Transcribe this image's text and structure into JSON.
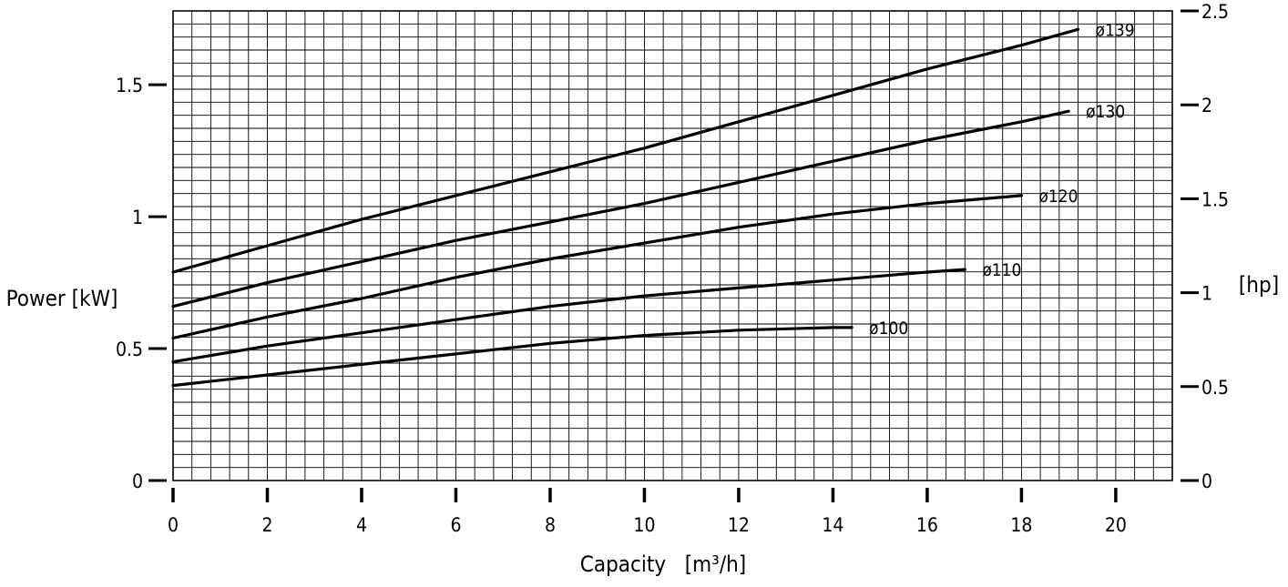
{
  "chart_data": {
    "type": "line",
    "xlabel": "Capacity   [m³/h]",
    "ylabel": "Power [kW]",
    "y2label": "[hp]",
    "xlim": [
      0,
      21.2
    ],
    "ylim": [
      0,
      1.78
    ],
    "y2lim": [
      0,
      2.5
    ],
    "x_ticks": [
      0,
      2,
      4,
      6,
      8,
      10,
      12,
      14,
      16,
      18,
      20
    ],
    "x_tick_labels": [
      "0",
      "2",
      "4",
      "6",
      "8",
      "10",
      "12",
      "14",
      "16",
      "18",
      "20"
    ],
    "y_ticks": [
      0,
      0.5,
      1,
      1.5
    ],
    "y_tick_labels": [
      "0",
      "0.5",
      "1",
      "1.5"
    ],
    "y2_ticks": [
      0,
      0.5,
      1,
      1.5,
      2,
      2.5
    ],
    "y2_tick_labels": [
      "0",
      "0.5",
      "1",
      "1.5",
      "2",
      "2.5"
    ],
    "grid": true,
    "series": [
      {
        "name": "ø139",
        "x": [
          0,
          2,
          4,
          6,
          8,
          10,
          12,
          14,
          16,
          18,
          19.2
        ],
        "y": [
          0.79,
          0.89,
          0.99,
          1.08,
          1.17,
          1.26,
          1.36,
          1.46,
          1.56,
          1.65,
          1.71
        ]
      },
      {
        "name": "ø130",
        "x": [
          0,
          2,
          4,
          6,
          8,
          10,
          12,
          14,
          16,
          18,
          19
        ],
        "y": [
          0.66,
          0.75,
          0.83,
          0.91,
          0.98,
          1.05,
          1.13,
          1.21,
          1.29,
          1.36,
          1.4
        ]
      },
      {
        "name": "ø120",
        "x": [
          0,
          2,
          4,
          6,
          8,
          10,
          12,
          14,
          16,
          18
        ],
        "y": [
          0.54,
          0.62,
          0.69,
          0.77,
          0.84,
          0.9,
          0.96,
          1.01,
          1.05,
          1.08
        ]
      },
      {
        "name": "ø110",
        "x": [
          0,
          2,
          4,
          6,
          8,
          10,
          12,
          14,
          16,
          16.8
        ],
        "y": [
          0.45,
          0.51,
          0.56,
          0.61,
          0.66,
          0.7,
          0.73,
          0.76,
          0.79,
          0.8
        ]
      },
      {
        "name": "ø100",
        "x": [
          0,
          2,
          4,
          6,
          8,
          10,
          12,
          14,
          14.4
        ],
        "y": [
          0.36,
          0.4,
          0.44,
          0.48,
          0.52,
          0.55,
          0.57,
          0.58,
          0.58
        ]
      }
    ]
  }
}
